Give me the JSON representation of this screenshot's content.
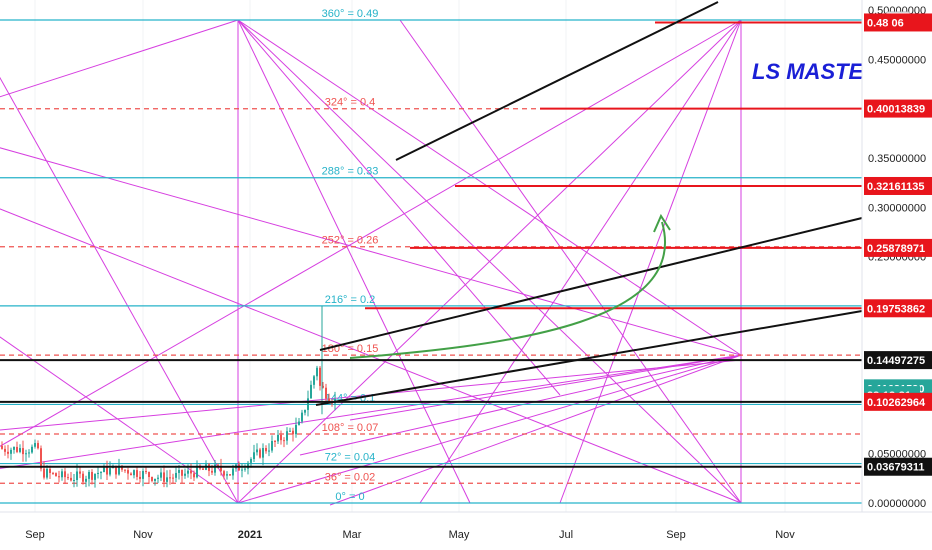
{
  "chart_data": {
    "type": "line",
    "title": "",
    "currency": "USD",
    "annotation": "LS MASTE",
    "ylim": [
      0,
      0.5
    ],
    "x_ticks": [
      "Sep",
      "Nov",
      "2021",
      "Mar",
      "May",
      "Jul",
      "Sep",
      "Nov"
    ],
    "y_ticks": [
      "0.50000000",
      "0.45000000",
      "0.35000000",
      "0.30000000",
      "0.25000000",
      "0.05000000",
      "0.00000000"
    ],
    "gann_levels": [
      {
        "label": "360° = 0.49",
        "value": 0.49,
        "color": "#26b3c9",
        "style": "solid"
      },
      {
        "label": "324° = 0.4",
        "value": 0.4,
        "color": "#ef5350",
        "style": "dashed"
      },
      {
        "label": "288° = 0.33",
        "value": 0.33,
        "color": "#26b3c9",
        "style": "solid"
      },
      {
        "label": "252° = 0.26",
        "value": 0.26,
        "color": "#ef5350",
        "style": "dashed"
      },
      {
        "label": "216° = 0.2",
        "value": 0.2,
        "color": "#26b3c9",
        "style": "solid"
      },
      {
        "label": "180° = 0.15",
        "value": 0.15,
        "color": "#ef5350",
        "style": "dashed"
      },
      {
        "label": "144° = 0.1",
        "value": 0.1,
        "color": "#26b3c9",
        "style": "solid"
      },
      {
        "label": "108° = 0.07",
        "value": 0.07,
        "color": "#ef5350",
        "style": "dashed"
      },
      {
        "label": "72° = 0.04",
        "value": 0.04,
        "color": "#26b3c9",
        "style": "solid"
      },
      {
        "label": "36° = 0.02",
        "value": 0.02,
        "color": "#ef5350",
        "style": "dashed"
      },
      {
        "label": "0° = 0",
        "value": 0,
        "color": "#26b3c9",
        "style": "solid"
      }
    ],
    "price_labels": [
      {
        "text": "0.48 06",
        "value": 0.4875,
        "bg": "#e8151c"
      },
      {
        "text": "0.40013839",
        "value": 0.40013839,
        "bg": "#e8151c"
      },
      {
        "text": "0.32161135",
        "value": 0.32161135,
        "bg": "#e8151c"
      },
      {
        "text": "0.25878971",
        "value": 0.25878971,
        "bg": "#e8151c"
      },
      {
        "text": "0.19753862",
        "value": 0.19753862,
        "bg": "#e8151c"
      },
      {
        "text": "0.14497275",
        "value": 0.14497275,
        "bg": "#111111"
      },
      {
        "text": "0.11631590",
        "value": 0.1163159,
        "bg": "#26a69a"
      },
      {
        "text": "23:12:31",
        "value": 0.1095,
        "bg": "#26a69a"
      },
      {
        "text": "0.10262964",
        "value": 0.10262964,
        "bg": "#e8151c"
      },
      {
        "text": "0.03679311",
        "value": 0.03679311,
        "bg": "#111111"
      }
    ]
  }
}
